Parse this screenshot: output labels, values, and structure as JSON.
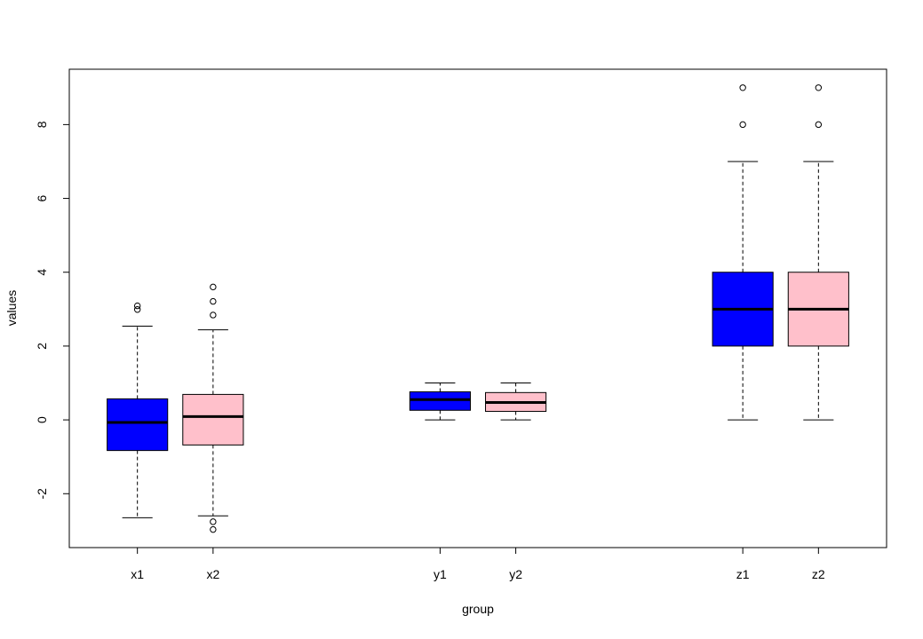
{
  "chart_data": {
    "type": "boxplot",
    "title": "",
    "xlabel": "group",
    "ylabel": "values",
    "ylim": [
      -3.46,
      9.5
    ],
    "xlim": [
      0.1,
      10.9
    ],
    "yticks": [
      -2,
      0,
      2,
      4,
      6,
      8
    ],
    "grid": false,
    "colors": {
      "blue": "#0000ff",
      "pink": "#ffc0cb"
    },
    "boxes": [
      {
        "label": "x1",
        "position": 1,
        "fill": "#0000ff",
        "whisker_low": -2.65,
        "q1": -0.83,
        "median": -0.07,
        "q3": 0.57,
        "whisker_high": 2.54,
        "outliers": [
          2.99,
          3.09
        ]
      },
      {
        "label": "x2",
        "position": 2,
        "fill": "#ffc0cb",
        "whisker_low": -2.6,
        "q1": -0.68,
        "median": 0.09,
        "q3": 0.69,
        "whisker_high": 2.44,
        "outliers": [
          2.84,
          3.21,
          3.6,
          -2.76,
          -2.97
        ]
      },
      {
        "label": "y1",
        "position": 5,
        "fill": "#0000ff",
        "whisker_low": 0,
        "q1": 0.26,
        "median": 0.55,
        "q3": 0.76,
        "whisker_high": 1.0,
        "outliers": []
      },
      {
        "label": "y2",
        "position": 6,
        "fill": "#ffc0cb",
        "whisker_low": 0,
        "q1": 0.23,
        "median": 0.47,
        "q3": 0.74,
        "whisker_high": 1.0,
        "outliers": []
      },
      {
        "label": "z1",
        "position": 9,
        "fill": "#0000ff",
        "whisker_low": 0,
        "q1": 2,
        "median": 3,
        "q3": 4,
        "whisker_high": 7,
        "outliers": [
          8,
          9
        ]
      },
      {
        "label": "z2",
        "position": 10,
        "fill": "#ffc0cb",
        "whisker_low": 0,
        "q1": 2,
        "median": 3,
        "q3": 4,
        "whisker_high": 7,
        "outliers": [
          8,
          9
        ]
      }
    ]
  }
}
